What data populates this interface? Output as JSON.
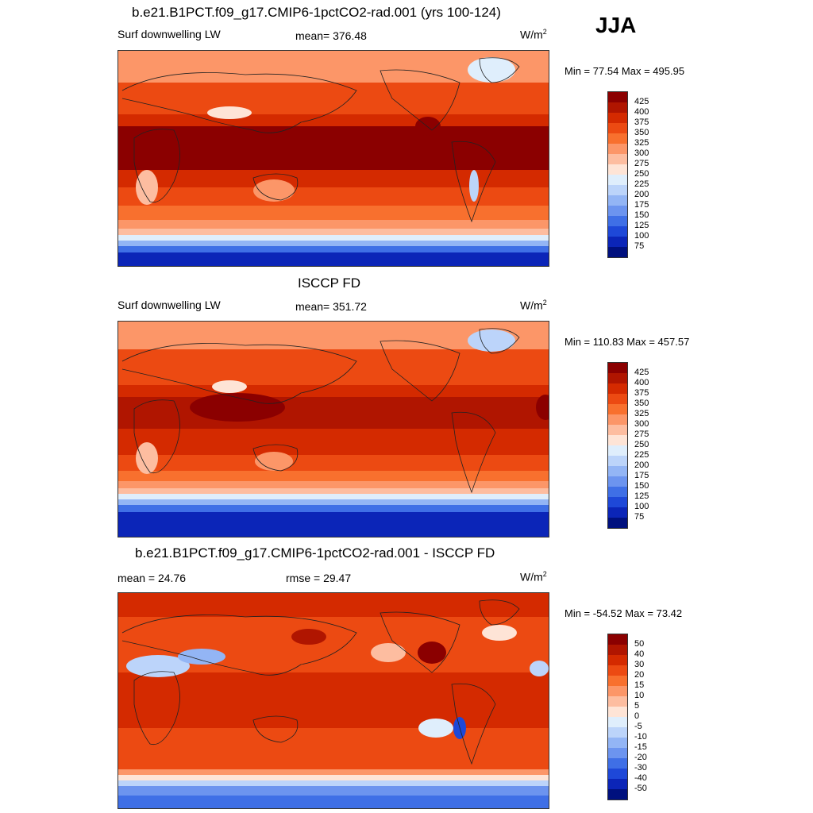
{
  "season": "JJA",
  "panels": [
    {
      "title": "b.e21.B1PCT.f09_g17.CMIP6-1pctCO2-rad.001 (yrs 100-124)",
      "left": "Surf downwelling LW",
      "center": "mean= 376.48",
      "units_base": "W/m",
      "units_exp": "2",
      "minmax": "Min =  77.54 Max = 495.95",
      "legend": {
        "labels": [
          "425",
          "400",
          "375",
          "350",
          "325",
          "300",
          "275",
          "250",
          "225",
          "200",
          "175",
          "150",
          "125",
          "100",
          "75"
        ],
        "colors": [
          "#8b0000",
          "#b01500",
          "#d42a00",
          "#ec4a12",
          "#f8702e",
          "#fc9668",
          "#fdbda0",
          "#fee4d6",
          "#dfeefc",
          "#bcd4fa",
          "#93b5f5",
          "#6c94ef",
          "#3f6fe6",
          "#1e48d8",
          "#0b25b8",
          "#00107e"
        ]
      }
    },
    {
      "title": "ISCCP FD",
      "left": "Surf downwelling LW",
      "center": "mean= 351.72",
      "units_base": "W/m",
      "units_exp": "2",
      "minmax": "Min = 110.83 Max = 457.57",
      "legend": {
        "labels": [
          "425",
          "400",
          "375",
          "350",
          "325",
          "300",
          "275",
          "250",
          "225",
          "200",
          "175",
          "150",
          "125",
          "100",
          "75"
        ],
        "colors": [
          "#8b0000",
          "#b01500",
          "#d42a00",
          "#ec4a12",
          "#f8702e",
          "#fc9668",
          "#fdbda0",
          "#fee4d6",
          "#dfeefc",
          "#bcd4fa",
          "#93b5f5",
          "#6c94ef",
          "#3f6fe6",
          "#1e48d8",
          "#0b25b8",
          "#00107e"
        ]
      }
    },
    {
      "title": "b.e21.B1PCT.f09_g17.CMIP6-1pctCO2-rad.001 - ISCCP FD",
      "left": "mean =  24.76",
      "center": "rmse =  29.47",
      "units_base": "W/m",
      "units_exp": "2",
      "minmax": "Min = -54.52 Max =  73.42",
      "legend": {
        "labels": [
          "50",
          "40",
          "30",
          "20",
          "15",
          "10",
          "5",
          "0",
          "-5",
          "-10",
          "-15",
          "-20",
          "-30",
          "-40",
          "-50"
        ],
        "colors": [
          "#8b0000",
          "#b01500",
          "#d42a00",
          "#ec4a12",
          "#f8702e",
          "#fc9668",
          "#fdbda0",
          "#fee4d6",
          "#dfeefc",
          "#bcd4fa",
          "#93b5f5",
          "#6c94ef",
          "#3f6fe6",
          "#1e48d8",
          "#0b25b8",
          "#00107e"
        ]
      }
    }
  ]
}
